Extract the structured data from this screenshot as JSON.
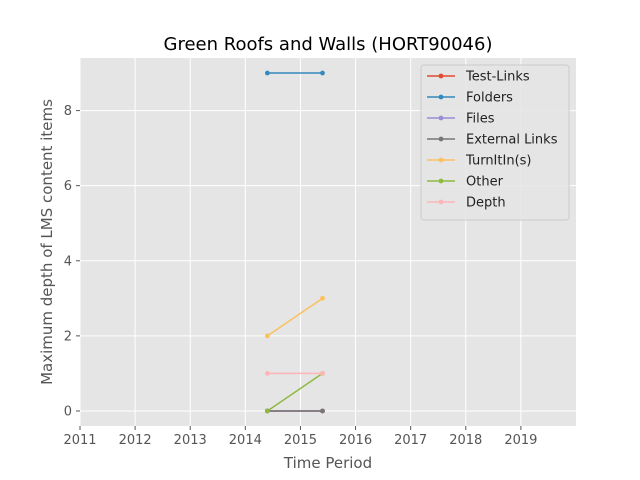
{
  "chart_data": {
    "type": "line",
    "title": "Green Roofs and Walls (HORT90046)",
    "xlabel": "Time Period",
    "ylabel": "Maximum depth of LMS content items",
    "xlim": [
      2011,
      2020
    ],
    "ylim": [
      -0.4,
      9.4
    ],
    "xticks": [
      2011,
      2012,
      2013,
      2014,
      2015,
      2016,
      2017,
      2018,
      2019
    ],
    "xtick_labels": [
      "2011",
      "2012",
      "2013",
      "2014",
      "2015",
      "2016",
      "2017",
      "2018",
      "2019"
    ],
    "yticks": [
      0,
      2,
      4,
      6,
      8
    ],
    "ytick_labels": [
      "0",
      "2",
      "4",
      "6",
      "8"
    ],
    "grid": true,
    "legend_position": "top-right",
    "series": [
      {
        "name": "Test-Links",
        "color": "#e24a33",
        "x": [
          2014.4,
          2015.4
        ],
        "y": [
          0,
          0
        ]
      },
      {
        "name": "Folders",
        "color": "#348abd",
        "x": [
          2014.4,
          2015.4
        ],
        "y": [
          9,
          9
        ]
      },
      {
        "name": "Files",
        "color": "#988ed5",
        "x": [
          2014.4,
          2015.4
        ],
        "y": [
          0,
          0
        ]
      },
      {
        "name": "External Links",
        "color": "#777777",
        "x": [
          2014.4,
          2015.4
        ],
        "y": [
          0,
          0
        ]
      },
      {
        "name": "TurnItIn(s)",
        "color": "#fbc15e",
        "x": [
          2014.4,
          2015.4
        ],
        "y": [
          2,
          3
        ]
      },
      {
        "name": "Other",
        "color": "#8eba42",
        "x": [
          2014.4,
          2015.4
        ],
        "y": [
          0,
          1
        ]
      },
      {
        "name": "Depth",
        "color": "#ffb5b8",
        "x": [
          2014.4,
          2015.4
        ],
        "y": [
          1,
          1
        ]
      }
    ]
  }
}
